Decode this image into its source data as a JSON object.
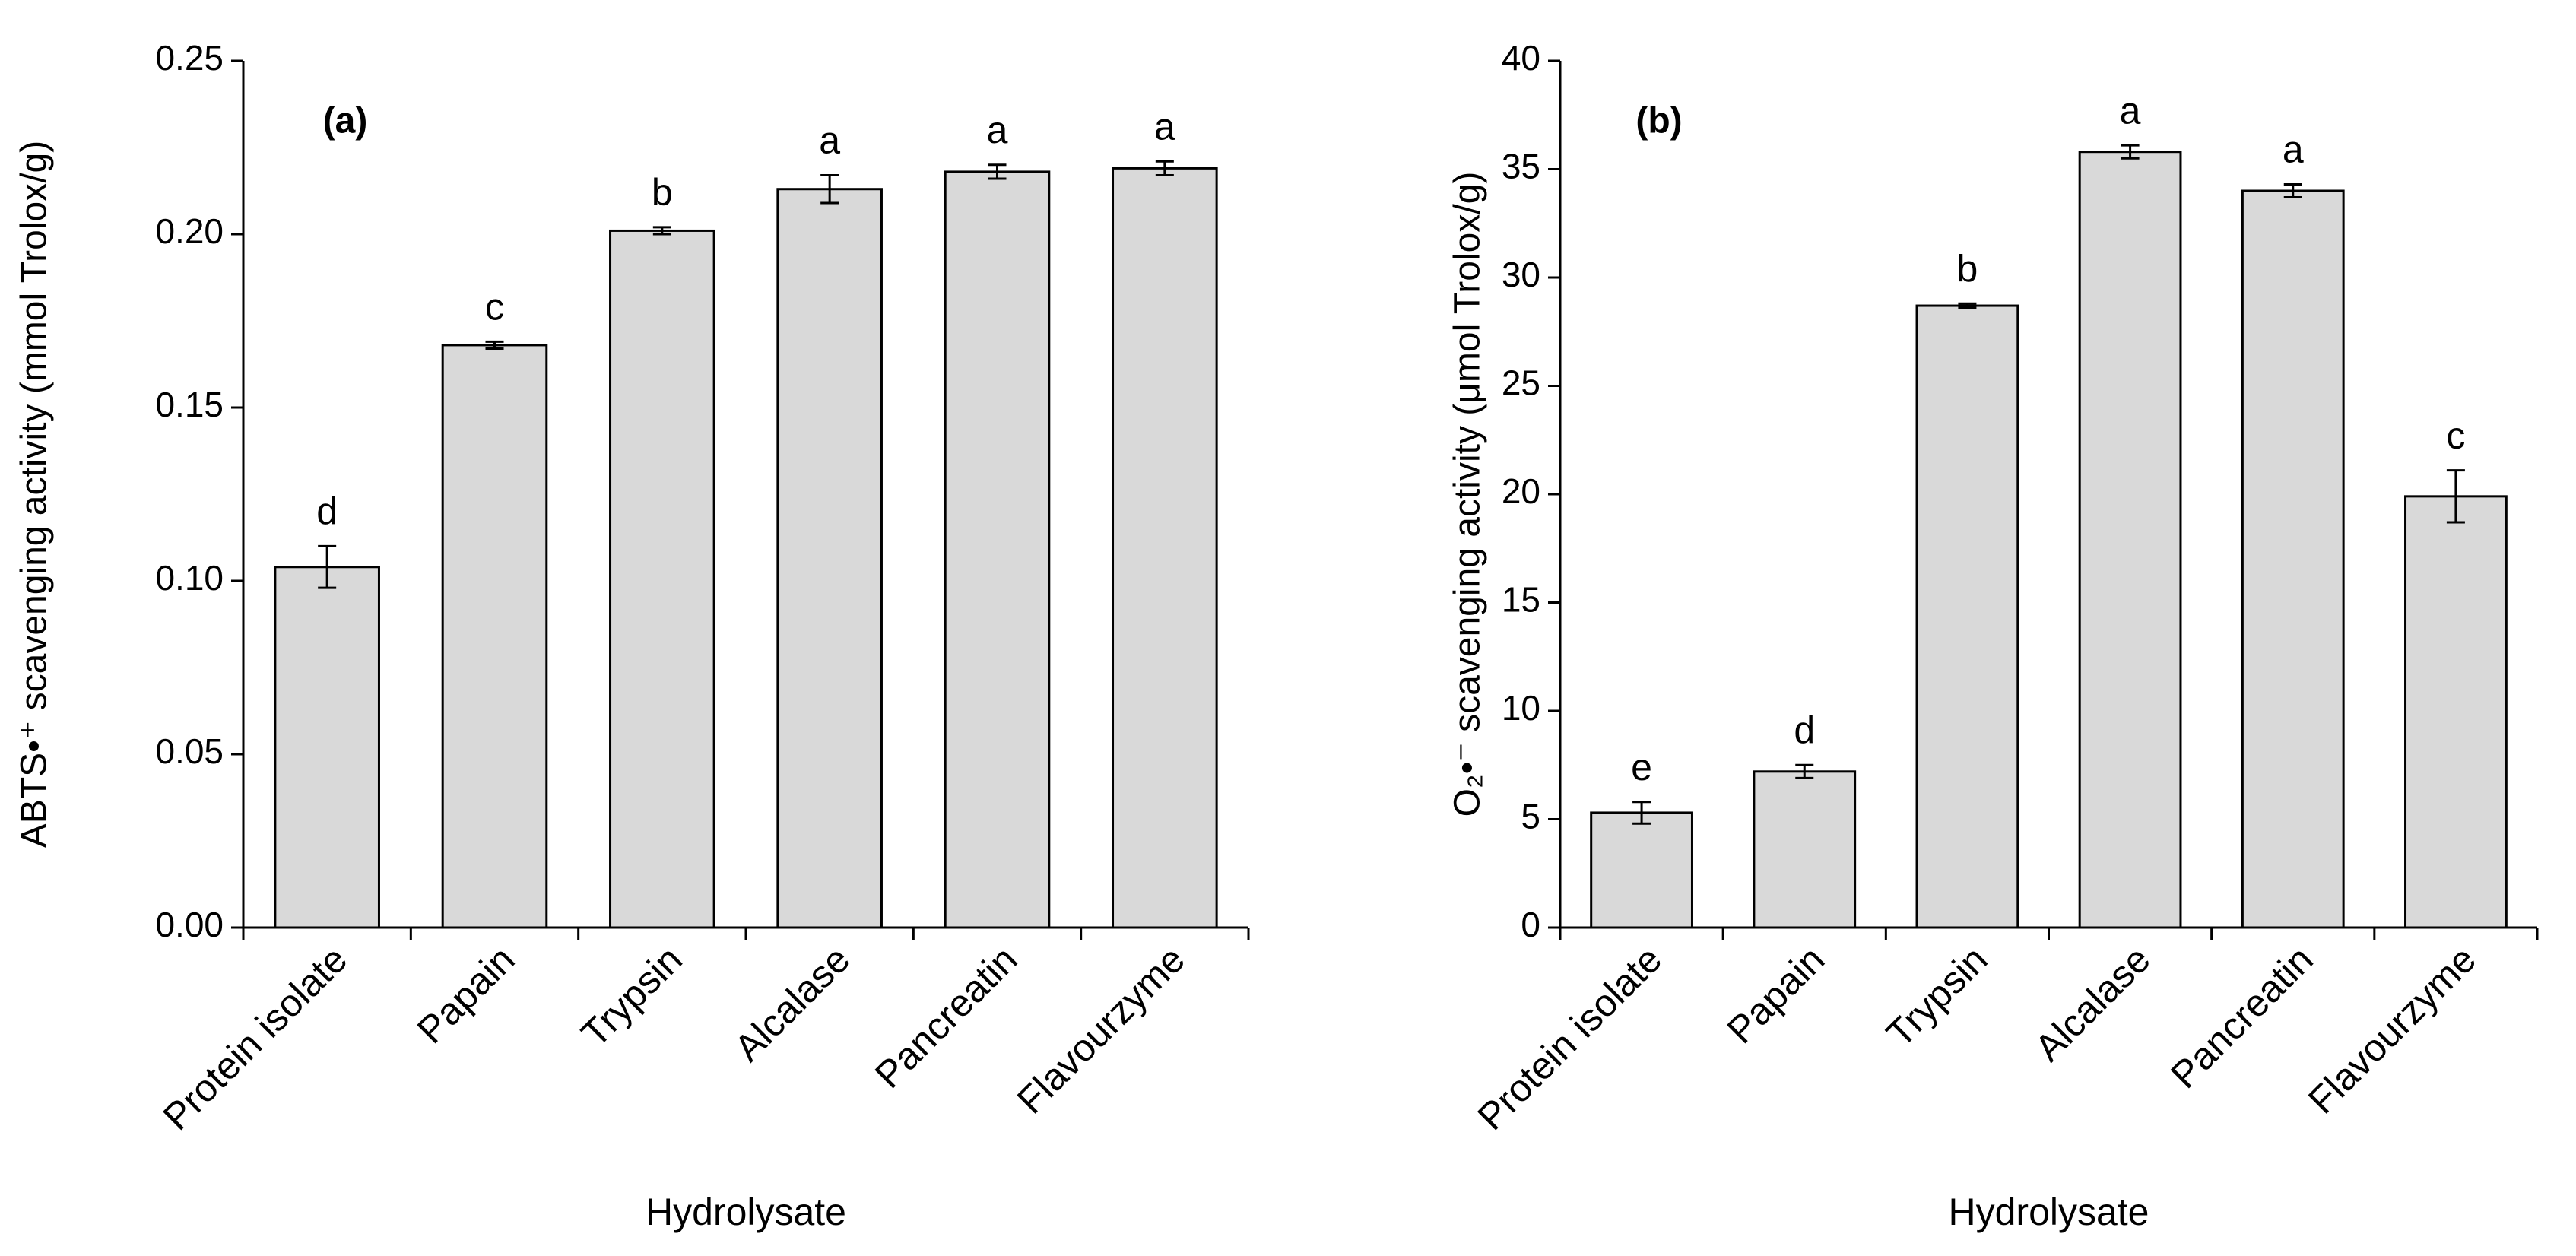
{
  "chart_data": [
    {
      "type": "bar",
      "panel_label": "(a)",
      "x_label": "Hydrolysate",
      "y_label": "ABTS•⁺ scavenging activity (mmol Trolox/g)",
      "categories": [
        "Protein isolate",
        "Papain",
        "Trypsin",
        "Alcalase",
        "Pancreatin",
        "Flavourzyme"
      ],
      "values": [
        0.104,
        0.168,
        0.201,
        0.213,
        0.218,
        0.219
      ],
      "errors": [
        0.006,
        0.001,
        0.001,
        0.004,
        0.002,
        0.002
      ],
      "annotations": [
        "d",
        "c",
        "b",
        "a",
        "a",
        "a"
      ],
      "color": "#d9d9d9",
      "ylim": [
        0,
        0.25
      ],
      "yticks": [
        {
          "value": 0,
          "label": "0.00"
        },
        0.05,
        {
          "value": 0.1,
          "label": "0.10"
        },
        0.15,
        {
          "value": 0.2,
          "label": "0.20"
        },
        0.25
      ]
    },
    {
      "type": "bar",
      "panel_label": "(b)",
      "x_label": "Hydrolysate",
      "y_label": "O₂•⁻ scavenging activity (μmol Trolox/g)",
      "categories": [
        "Protein isolate",
        "Papain",
        "Trypsin",
        "Alcalase",
        "Pancreatin",
        "Flavourzyme"
      ],
      "values": [
        5.3,
        7.2,
        28.7,
        35.8,
        34.0,
        19.9
      ],
      "errors": [
        0.5,
        0.3,
        0.1,
        0.3,
        0.3,
        1.2
      ],
      "annotations": [
        "e",
        "d",
        "b",
        "a",
        "a",
        "c"
      ],
      "color": "#d9d9d9",
      "ylim": [
        0,
        40
      ],
      "yticks": [
        0,
        5,
        10,
        15,
        20,
        25,
        30,
        35,
        40
      ]
    }
  ]
}
